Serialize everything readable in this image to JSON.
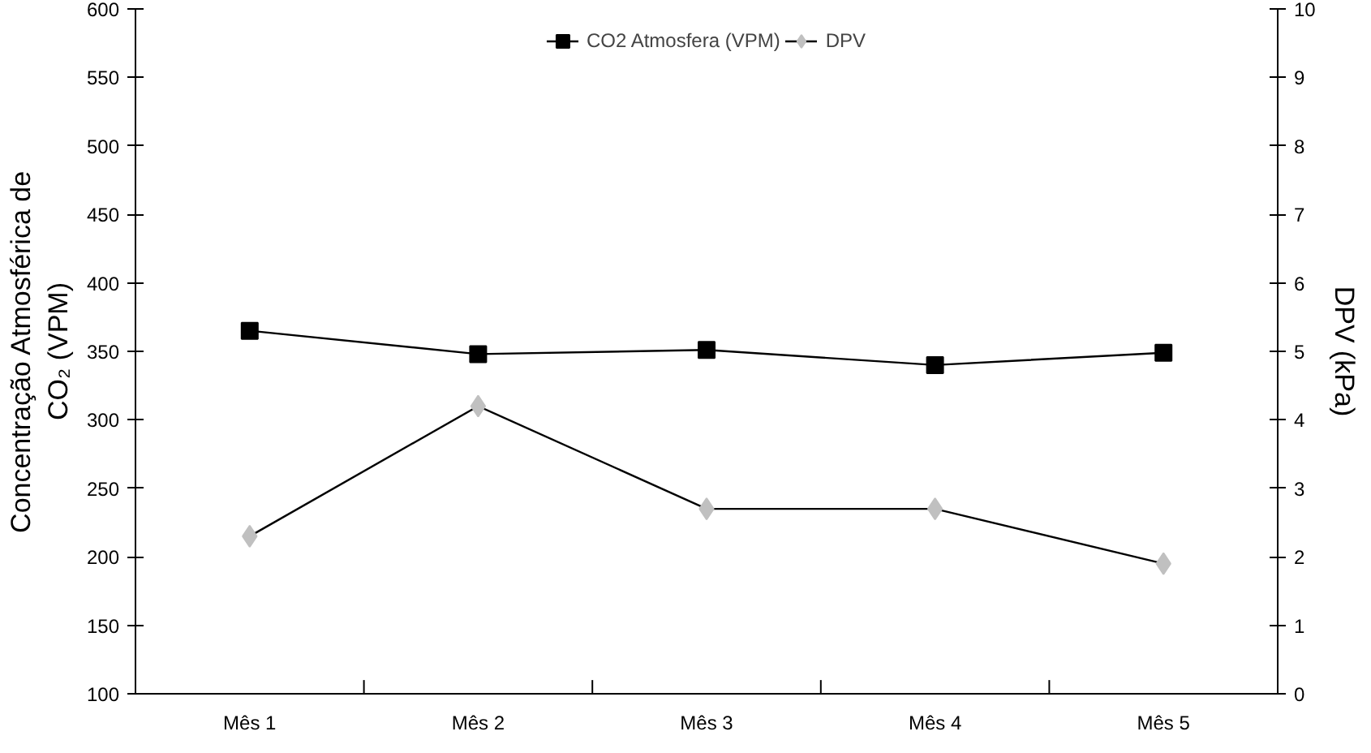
{
  "chart_data": {
    "type": "line",
    "categories": [
      "Mês 1",
      "Mês 2",
      "Mês 3",
      "Mês 4",
      "Mês 5"
    ],
    "ylabel": "Concentração Atmosférica de CO₂ (VPM)",
    "y2label": "DPV (kPa)",
    "ylim": [
      100,
      600
    ],
    "yticks": [
      100,
      150,
      200,
      250,
      300,
      350,
      400,
      450,
      500,
      550,
      600
    ],
    "y2lim": [
      0,
      10
    ],
    "y2ticks": [
      0,
      1,
      2,
      3,
      4,
      5,
      6,
      7,
      8,
      9,
      10
    ],
    "legend": "top",
    "grid": false,
    "series": [
      {
        "name": "CO2 Atmosfera (VPM)",
        "color": "#000000",
        "marker": "square",
        "values": [
          365,
          348,
          351,
          340,
          349
        ]
      },
      {
        "name": "DPV",
        "color": "#c0c0c0",
        "marker": "diamond",
        "axis": "y2",
        "values": [
          2.3,
          4.2,
          2.7,
          2.7,
          1.9
        ]
      }
    ]
  }
}
